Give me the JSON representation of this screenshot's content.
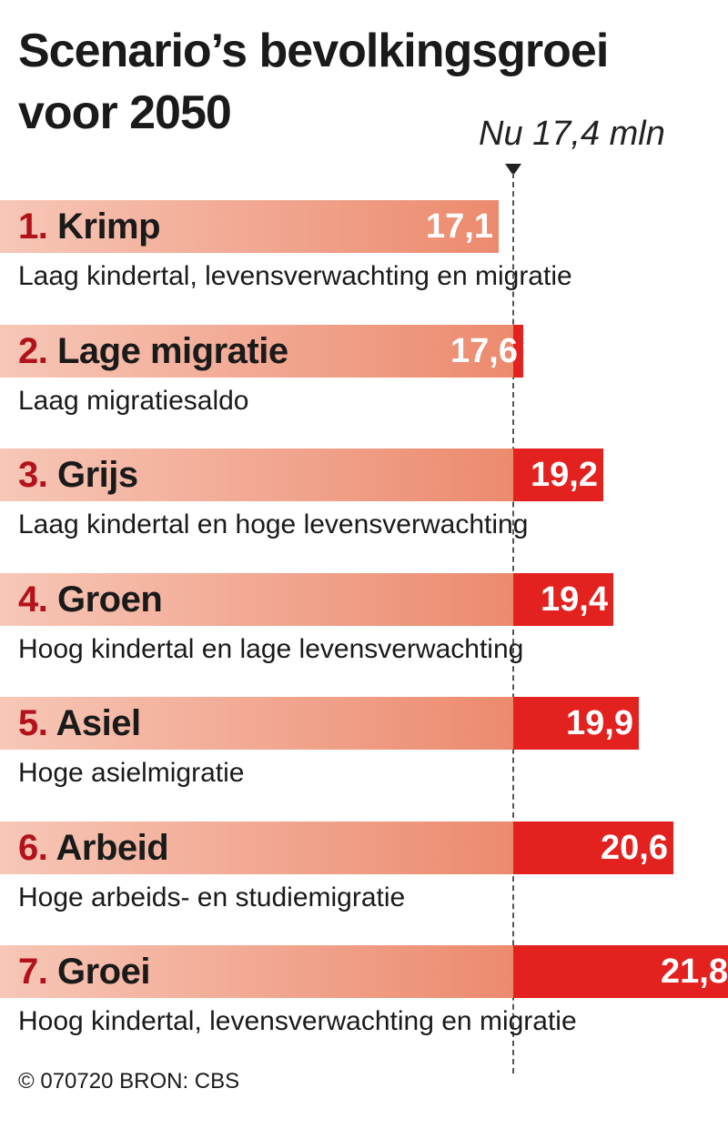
{
  "title": "Scenario’s bevolkingsgroei voor 2050",
  "source": "© 070720 BRON: CBS",
  "colors": {
    "bar_light": "#f7c7b7",
    "bar_mid": "#ec8a6e",
    "bar_red": "#e3211f",
    "number_red": "#b3121b"
  },
  "chart_data": {
    "type": "bar",
    "orientation": "horizontal",
    "title": "Scenario’s bevolkingsgroei voor 2050",
    "reference": {
      "value": 17.4,
      "label": "Nu 17,4 mln"
    },
    "categories": [
      "1.",
      "2.",
      "3.",
      "4.",
      "5.",
      "6.",
      "7."
    ],
    "bars": [
      {
        "num": "1.",
        "name": "Krimp",
        "value": 17.1,
        "value_label": "17,1",
        "description": "Laag kindertal, levensverwachting en migratie"
      },
      {
        "num": "2.",
        "name": "Lage migratie",
        "value": 17.6,
        "value_label": "17,6",
        "description": "Laag migratiesaldo"
      },
      {
        "num": "3.",
        "name": "Grijs",
        "value": 19.2,
        "value_label": "19,2",
        "description": "Laag kindertal en hoge levensverwachting"
      },
      {
        "num": "4.",
        "name": "Groen",
        "value": 19.4,
        "value_label": "19,4",
        "description": "Hoog kindertal en lage levensverwachting"
      },
      {
        "num": "5.",
        "name": "Asiel",
        "value": 19.9,
        "value_label": "19,9",
        "description": "Hoge asielmigratie"
      },
      {
        "num": "6.",
        "name": "Arbeid",
        "value": 20.6,
        "value_label": "20,6",
        "description": "Hoge arbeids- en studiemigratie"
      },
      {
        "num": "7.",
        "name": "Groei",
        "value": 21.8,
        "value_label": "21,8",
        "description": "Hoog kindertal, levensverwachting en migratie"
      }
    ]
  }
}
